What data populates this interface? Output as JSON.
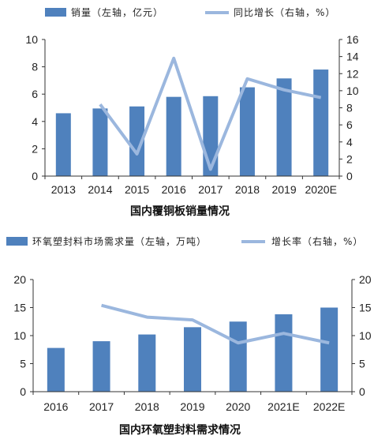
{
  "chart_data": [
    {
      "type": "bar",
      "title": "国内覆铜板销量情况",
      "categories": [
        "2013",
        "2014",
        "2015",
        "2016",
        "2017",
        "2018",
        "2019",
        "2020E"
      ],
      "series": [
        {
          "name": "销量（左轴，亿元）",
          "type": "bar",
          "axis": "left",
          "values": [
            4.6,
            4.95,
            5.1,
            5.8,
            5.85,
            6.5,
            7.15,
            7.8
          ]
        },
        {
          "name": "同比增长（右轴，%）",
          "type": "line",
          "axis": "right",
          "values": [
            null,
            8.4,
            2.6,
            13.8,
            0.8,
            11.4,
            10.1,
            9.2
          ]
        }
      ],
      "ylim_left": [
        0,
        10
      ],
      "yticks_left": [
        0,
        2,
        4,
        6,
        8,
        10
      ],
      "ylim_right": [
        0,
        16
      ],
      "yticks_right": [
        0,
        2,
        4,
        6,
        8,
        10,
        12,
        14,
        16
      ],
      "grid": false,
      "legend_position": "top",
      "colors": {
        "bar": "#4F81BD",
        "line": "#9BB7DE"
      }
    },
    {
      "type": "bar",
      "title": "国内环氧塑封料需求情况",
      "categories": [
        "2016",
        "2017",
        "2018",
        "2019",
        "2020",
        "2021E",
        "2022E"
      ],
      "series": [
        {
          "name": "环氧塑封料市场需求量（左轴，万吨）",
          "type": "bar",
          "axis": "left",
          "values": [
            7.8,
            9.0,
            10.2,
            11.5,
            12.5,
            13.8,
            15.0
          ]
        },
        {
          "name": "增长率（右轴，%）",
          "type": "line",
          "axis": "right",
          "values": [
            null,
            15.4,
            13.3,
            12.8,
            8.7,
            10.4,
            8.7
          ]
        }
      ],
      "ylim_left": [
        0,
        20
      ],
      "yticks_left": [
        0,
        5,
        10,
        15,
        20
      ],
      "ylim_right": [
        0,
        20
      ],
      "yticks_right": [
        0,
        5,
        10,
        15,
        20
      ],
      "grid": false,
      "legend_position": "top",
      "colors": {
        "bar": "#4F81BD",
        "line": "#9BB7DE"
      }
    }
  ]
}
